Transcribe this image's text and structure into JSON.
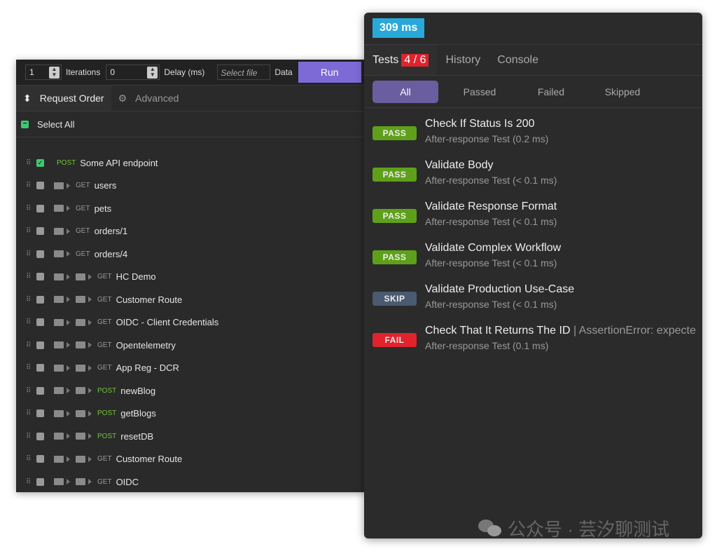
{
  "runner": {
    "iterations_value": "1",
    "iterations_label": "Iterations",
    "delay_value": "0",
    "delay_label": "Delay (ms)",
    "file_placeholder": "Select file",
    "data_label": "Data",
    "run_label": "Run",
    "tabs": [
      {
        "label": "Request Order",
        "icon": "sort-icon"
      },
      {
        "label": "Advanced",
        "icon": "gear-icon"
      }
    ],
    "select_all": "Select All",
    "requests": [
      {
        "method": "POST",
        "name": "Some API endpoint",
        "checked": true,
        "depth": 0
      },
      {
        "method": "GET",
        "name": "users",
        "checked": false,
        "depth": 1
      },
      {
        "method": "GET",
        "name": "pets",
        "checked": false,
        "depth": 1
      },
      {
        "method": "GET",
        "name": "orders/1",
        "checked": false,
        "depth": 1
      },
      {
        "method": "GET",
        "name": "orders/4",
        "checked": false,
        "depth": 1
      },
      {
        "method": "GET",
        "name": "HC Demo",
        "checked": false,
        "depth": 2
      },
      {
        "method": "GET",
        "name": "Customer Route",
        "checked": false,
        "depth": 2
      },
      {
        "method": "GET",
        "name": "OIDC - Client Credentials",
        "checked": false,
        "depth": 2
      },
      {
        "method": "GET",
        "name": "Opentelemetry",
        "checked": false,
        "depth": 2
      },
      {
        "method": "GET",
        "name": "App Reg - DCR",
        "checked": false,
        "depth": 2
      },
      {
        "method": "POST",
        "name": "newBlog",
        "checked": false,
        "depth": 2
      },
      {
        "method": "POST",
        "name": "getBlogs",
        "checked": false,
        "depth": 2
      },
      {
        "method": "POST",
        "name": "resetDB",
        "checked": false,
        "depth": 2
      },
      {
        "method": "GET",
        "name": "Customer Route",
        "checked": false,
        "depth": 2
      },
      {
        "method": "GET",
        "name": "OIDC",
        "checked": false,
        "depth": 2
      }
    ]
  },
  "results": {
    "time": "309 ms",
    "tabs": [
      {
        "label": "Tests",
        "badge": "4 / 6"
      },
      {
        "label": "History"
      },
      {
        "label": "Console"
      }
    ],
    "filters": [
      "All",
      "Passed",
      "Failed",
      "Skipped"
    ],
    "tests": [
      {
        "status": "PASS",
        "name": "Check If Status Is 200",
        "error": "",
        "detail": "After-response Test (0.2 ms)"
      },
      {
        "status": "PASS",
        "name": "Validate Body",
        "error": "",
        "detail": "After-response Test (< 0.1 ms)"
      },
      {
        "status": "PASS",
        "name": "Validate Response Format",
        "error": "",
        "detail": "After-response Test (< 0.1 ms)"
      },
      {
        "status": "PASS",
        "name": "Validate Complex Workflow",
        "error": "",
        "detail": "After-response Test (< 0.1 ms)"
      },
      {
        "status": "SKIP",
        "name": "Validate Production Use-Case",
        "error": "",
        "detail": "After-response Test (< 0.1 ms)"
      },
      {
        "status": "FAIL",
        "name": "Check That It Returns The ID",
        "error": " | AssertionError: expecte",
        "detail": "After-response Test (0.1 ms)"
      }
    ]
  },
  "colors": {
    "PASS": "#5fa01a",
    "SKIP": "#4a5a70",
    "FAIL": "#e0232c",
    "accent": "#7d6ad6",
    "time": "#29a9d9"
  },
  "watermark": "公众号 · 芸汐聊测试"
}
